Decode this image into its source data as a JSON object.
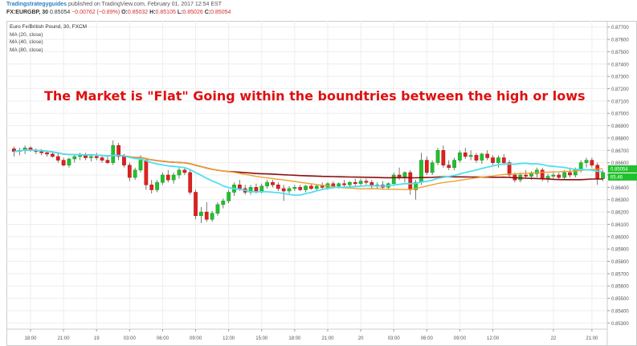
{
  "header": {
    "brand": "Tradingstrategyguides",
    "published_text": "published on TradingView.com, February 01, 2017 12:54 EST",
    "symbol": "FX:EURGBP, 30",
    "last": "0.85054",
    "change": "−0.00762 (−0.89%)",
    "open_label": "O:",
    "open": "0.85032",
    "high_label": "H:",
    "high": "0.85105",
    "low_label": "L:",
    "low": "0.85026",
    "close_label": "C:",
    "close": "0.85054"
  },
  "legend": {
    "title": "Euro Fx/British Pound, 30, FXCM",
    "items": [
      "MA (20, close)",
      "MA (40, close)",
      "MA (80, close)"
    ]
  },
  "annotation": "The Market is \"Flat\" Going within the boundtries between the high or lows",
  "colors": {
    "up": "#22c02e",
    "down": "#e02020",
    "wick": "#555555",
    "ma20": "#4fe0f0",
    "ma40": "#f0a030",
    "ma80": "#8b1010",
    "price_tag": "#22c02e",
    "grid": "#eeeeee"
  },
  "chart_data": {
    "type": "candlestick",
    "title": "Euro Fx/British Pound, 30, FXCM",
    "ylim": [
      0.8525,
      0.8775
    ],
    "y_ticks": [
      "0.87700",
      "0.87600",
      "0.87500",
      "0.87400",
      "0.87300",
      "0.87200",
      "0.87100",
      "0.87000",
      "0.86900",
      "0.86800",
      "0.86700",
      "0.86600",
      "0.86500",
      "0.86400",
      "0.86300",
      "0.86200",
      "0.86100",
      "0.86000",
      "0.85900",
      "0.85800",
      "0.85700",
      "0.85600",
      "0.85500",
      "0.85400",
      "0.85300"
    ],
    "x_ticks": [
      {
        "label": "18:00",
        "i": 3
      },
      {
        "label": "21:00",
        "i": 9
      },
      {
        "label": "19",
        "i": 15
      },
      {
        "label": "03:00",
        "i": 21
      },
      {
        "label": "06:00",
        "i": 27
      },
      {
        "label": "09:00",
        "i": 33
      },
      {
        "label": "12:00",
        "i": 39
      },
      {
        "label": "15:00",
        "i": 45
      },
      {
        "label": "18:00",
        "i": 51
      },
      {
        "label": "21:00",
        "i": 57
      },
      {
        "label": "20",
        "i": 63
      },
      {
        "label": "03:00",
        "i": 69
      },
      {
        "label": "06:00",
        "i": 75
      },
      {
        "label": "09:00",
        "i": 81
      },
      {
        "label": "12:00",
        "i": 87
      },
      {
        "label": "22",
        "i": 98
      },
      {
        "label": "21:00",
        "i": 105
      }
    ],
    "price_tags": [
      {
        "label": "0.85054"
      },
      {
        "label": "65.46"
      }
    ],
    "candles": [
      [
        0.86712,
        0.8673,
        0.8665,
        0.8669
      ],
      [
        0.8669,
        0.8672,
        0.8666,
        0.867
      ],
      [
        0.867,
        0.8674,
        0.8667,
        0.8672
      ],
      [
        0.8672,
        0.86735,
        0.8669,
        0.867
      ],
      [
        0.867,
        0.86715,
        0.8667,
        0.8669
      ],
      [
        0.8669,
        0.8671,
        0.8666,
        0.8668
      ],
      [
        0.8668,
        0.867,
        0.8665,
        0.8667
      ],
      [
        0.8667,
        0.8669,
        0.8664,
        0.8665
      ],
      [
        0.8665,
        0.8668,
        0.866,
        0.8662
      ],
      [
        0.8662,
        0.8664,
        0.8657,
        0.8658
      ],
      [
        0.8658,
        0.8664,
        0.8656,
        0.8663
      ],
      [
        0.8663,
        0.8666,
        0.866,
        0.8665
      ],
      [
        0.8665,
        0.8668,
        0.8662,
        0.8666
      ],
      [
        0.8666,
        0.8668,
        0.8662,
        0.8664
      ],
      [
        0.8664,
        0.8667,
        0.8661,
        0.8665
      ],
      [
        0.8665,
        0.8668,
        0.8662,
        0.8664
      ],
      [
        0.8664,
        0.8666,
        0.866,
        0.8662
      ],
      [
        0.8662,
        0.8665,
        0.8659,
        0.866
      ],
      [
        0.866,
        0.8678,
        0.8658,
        0.8674
      ],
      [
        0.8674,
        0.8676,
        0.8662,
        0.8665
      ],
      [
        0.8665,
        0.8667,
        0.8656,
        0.8658
      ],
      [
        0.8658,
        0.866,
        0.8645,
        0.8648
      ],
      [
        0.8648,
        0.8656,
        0.8646,
        0.8654
      ],
      [
        0.8654,
        0.8666,
        0.8652,
        0.8662
      ],
      [
        0.8662,
        0.8664,
        0.8638,
        0.8642
      ],
      [
        0.8642,
        0.8646,
        0.8635,
        0.8638
      ],
      [
        0.8638,
        0.8646,
        0.8636,
        0.8644
      ],
      [
        0.8644,
        0.8652,
        0.8642,
        0.865
      ],
      [
        0.865,
        0.8654,
        0.8644,
        0.8646
      ],
      [
        0.8646,
        0.8652,
        0.8643,
        0.865
      ],
      [
        0.865,
        0.8656,
        0.8647,
        0.8654
      ],
      [
        0.8654,
        0.8656,
        0.865,
        0.8652
      ],
      [
        0.8652,
        0.8654,
        0.8634,
        0.8636
      ],
      [
        0.8636,
        0.8638,
        0.8614,
        0.8617
      ],
      [
        0.8617,
        0.8624,
        0.8611,
        0.862
      ],
      [
        0.862,
        0.8628,
        0.8612,
        0.8614
      ],
      [
        0.8614,
        0.8621,
        0.8612,
        0.8619
      ],
      [
        0.8619,
        0.8628,
        0.8617,
        0.8626
      ],
      [
        0.8626,
        0.8631,
        0.8623,
        0.8629
      ],
      [
        0.8629,
        0.8638,
        0.8627,
        0.8636
      ],
      [
        0.8636,
        0.8644,
        0.8633,
        0.8642
      ],
      [
        0.8642,
        0.8646,
        0.8637,
        0.8639
      ],
      [
        0.8639,
        0.8642,
        0.8634,
        0.8636
      ],
      [
        0.8636,
        0.8642,
        0.8634,
        0.864
      ],
      [
        0.864,
        0.8643,
        0.8635,
        0.8637
      ],
      [
        0.8637,
        0.8643,
        0.8635,
        0.8641
      ],
      [
        0.8641,
        0.8646,
        0.8639,
        0.8644
      ],
      [
        0.8644,
        0.8646,
        0.864,
        0.8642
      ],
      [
        0.8642,
        0.8644,
        0.8637,
        0.8639
      ],
      [
        0.8639,
        0.8642,
        0.8629,
        0.8637
      ],
      [
        0.8637,
        0.8641,
        0.8635,
        0.8639
      ],
      [
        0.8639,
        0.8642,
        0.8637,
        0.864
      ],
      [
        0.864,
        0.8642,
        0.8637,
        0.8638
      ],
      [
        0.8638,
        0.8642,
        0.8636,
        0.8641
      ],
      [
        0.8641,
        0.8643,
        0.8638,
        0.8639
      ],
      [
        0.8639,
        0.8642,
        0.8637,
        0.8641
      ],
      [
        0.8641,
        0.8644,
        0.8638,
        0.864
      ],
      [
        0.864,
        0.8644,
        0.8638,
        0.8643
      ],
      [
        0.8643,
        0.8645,
        0.8639,
        0.8641
      ],
      [
        0.8641,
        0.8644,
        0.8639,
        0.8643
      ],
      [
        0.8643,
        0.8646,
        0.864,
        0.8642
      ],
      [
        0.8642,
        0.8645,
        0.8639,
        0.8644
      ],
      [
        0.8644,
        0.8647,
        0.8641,
        0.8643
      ],
      [
        0.8643,
        0.8647,
        0.8641,
        0.8645
      ],
      [
        0.8645,
        0.8647,
        0.8642,
        0.8644
      ],
      [
        0.8644,
        0.8646,
        0.8639,
        0.8641
      ],
      [
        0.8641,
        0.8644,
        0.8639,
        0.8642
      ],
      [
        0.8642,
        0.8645,
        0.8638,
        0.864
      ],
      [
        0.864,
        0.8644,
        0.8638,
        0.8643
      ],
      [
        0.8643,
        0.8652,
        0.8641,
        0.865
      ],
      [
        0.865,
        0.8656,
        0.8646,
        0.8648
      ],
      [
        0.8648,
        0.8653,
        0.8644,
        0.8652
      ],
      [
        0.8652,
        0.8654,
        0.8634,
        0.8638
      ],
      [
        0.8638,
        0.8646,
        0.863,
        0.8644
      ],
      [
        0.8644,
        0.8668,
        0.8642,
        0.8662
      ],
      [
        0.8662,
        0.8665,
        0.865,
        0.8652
      ],
      [
        0.8652,
        0.8662,
        0.865,
        0.866
      ],
      [
        0.866,
        0.8672,
        0.8658,
        0.867
      ],
      [
        0.867,
        0.8674,
        0.8656,
        0.8658
      ],
      [
        0.8658,
        0.8662,
        0.8654,
        0.8656
      ],
      [
        0.8656,
        0.8664,
        0.8654,
        0.8662
      ],
      [
        0.8662,
        0.867,
        0.866,
        0.8668
      ],
      [
        0.8668,
        0.8672,
        0.8663,
        0.8665
      ],
      [
        0.8665,
        0.867,
        0.8662,
        0.8666
      ],
      [
        0.8666,
        0.8668,
        0.866,
        0.8662
      ],
      [
        0.8662,
        0.8668,
        0.8659,
        0.8667
      ],
      [
        0.8667,
        0.867,
        0.8662,
        0.8664
      ],
      [
        0.8664,
        0.8666,
        0.8658,
        0.866
      ],
      [
        0.866,
        0.8666,
        0.8656,
        0.8664
      ],
      [
        0.8664,
        0.8667,
        0.8658,
        0.866
      ],
      [
        0.866,
        0.8662,
        0.8648,
        0.865
      ],
      [
        0.865,
        0.8652,
        0.8644,
        0.8646
      ],
      [
        0.8646,
        0.8652,
        0.8644,
        0.865
      ],
      [
        0.865,
        0.8654,
        0.8647,
        0.8649
      ],
      [
        0.8649,
        0.8653,
        0.8646,
        0.8651
      ],
      [
        0.8651,
        0.8656,
        0.8648,
        0.8654
      ],
      [
        0.8654,
        0.8656,
        0.8645,
        0.8647
      ],
      [
        0.8647,
        0.8651,
        0.8644,
        0.8649
      ],
      [
        0.8649,
        0.8653,
        0.8646,
        0.865
      ],
      [
        0.865,
        0.8652,
        0.8646,
        0.8648
      ],
      [
        0.8648,
        0.8654,
        0.8646,
        0.8652
      ],
      [
        0.8652,
        0.8656,
        0.8648,
        0.865
      ],
      [
        0.865,
        0.8656,
        0.8648,
        0.8654
      ],
      [
        0.8654,
        0.8662,
        0.8652,
        0.866
      ],
      [
        0.866,
        0.8664,
        0.8656,
        0.8662
      ],
      [
        0.8662,
        0.8664,
        0.8656,
        0.8658
      ],
      [
        0.8658,
        0.866,
        0.8642,
        0.8647
      ],
      [
        0.8647,
        0.8654,
        0.8645,
        0.8652
      ]
    ]
  }
}
